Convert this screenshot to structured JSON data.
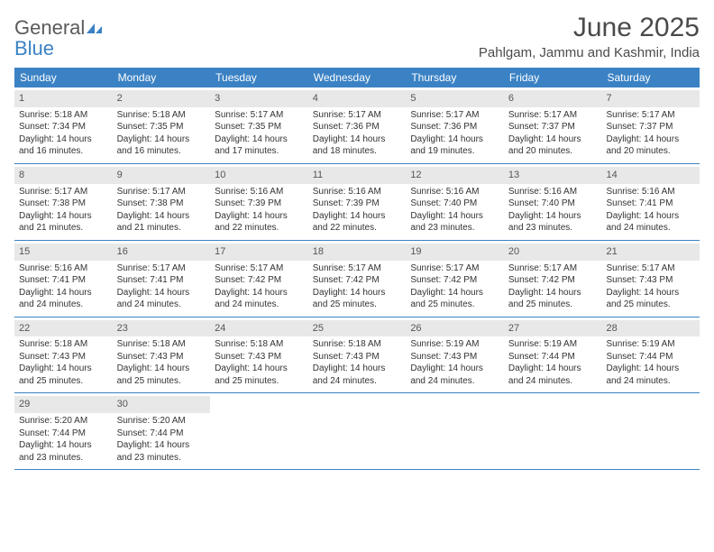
{
  "brand": {
    "name1": "General",
    "name2": "Blue"
  },
  "title": "June 2025",
  "location": "Pahlgam, Jammu and Kashmir, India",
  "colors": {
    "header_bg": "#3b82c4",
    "row_border": "#3b82c4",
    "daynum_bg": "#e8e8e8",
    "text": "#333333",
    "title_text": "#4a4a4a",
    "logo_gray": "#5a5a5a",
    "logo_blue": "#3b82c4"
  },
  "weekdays": [
    "Sunday",
    "Monday",
    "Tuesday",
    "Wednesday",
    "Thursday",
    "Friday",
    "Saturday"
  ],
  "days": [
    {
      "n": 1,
      "sr": "5:18 AM",
      "ss": "7:34 PM",
      "dl": "14 hours and 16 minutes."
    },
    {
      "n": 2,
      "sr": "5:18 AM",
      "ss": "7:35 PM",
      "dl": "14 hours and 16 minutes."
    },
    {
      "n": 3,
      "sr": "5:17 AM",
      "ss": "7:35 PM",
      "dl": "14 hours and 17 minutes."
    },
    {
      "n": 4,
      "sr": "5:17 AM",
      "ss": "7:36 PM",
      "dl": "14 hours and 18 minutes."
    },
    {
      "n": 5,
      "sr": "5:17 AM",
      "ss": "7:36 PM",
      "dl": "14 hours and 19 minutes."
    },
    {
      "n": 6,
      "sr": "5:17 AM",
      "ss": "7:37 PM",
      "dl": "14 hours and 20 minutes."
    },
    {
      "n": 7,
      "sr": "5:17 AM",
      "ss": "7:37 PM",
      "dl": "14 hours and 20 minutes."
    },
    {
      "n": 8,
      "sr": "5:17 AM",
      "ss": "7:38 PM",
      "dl": "14 hours and 21 minutes."
    },
    {
      "n": 9,
      "sr": "5:17 AM",
      "ss": "7:38 PM",
      "dl": "14 hours and 21 minutes."
    },
    {
      "n": 10,
      "sr": "5:16 AM",
      "ss": "7:39 PM",
      "dl": "14 hours and 22 minutes."
    },
    {
      "n": 11,
      "sr": "5:16 AM",
      "ss": "7:39 PM",
      "dl": "14 hours and 22 minutes."
    },
    {
      "n": 12,
      "sr": "5:16 AM",
      "ss": "7:40 PM",
      "dl": "14 hours and 23 minutes."
    },
    {
      "n": 13,
      "sr": "5:16 AM",
      "ss": "7:40 PM",
      "dl": "14 hours and 23 minutes."
    },
    {
      "n": 14,
      "sr": "5:16 AM",
      "ss": "7:41 PM",
      "dl": "14 hours and 24 minutes."
    },
    {
      "n": 15,
      "sr": "5:16 AM",
      "ss": "7:41 PM",
      "dl": "14 hours and 24 minutes."
    },
    {
      "n": 16,
      "sr": "5:17 AM",
      "ss": "7:41 PM",
      "dl": "14 hours and 24 minutes."
    },
    {
      "n": 17,
      "sr": "5:17 AM",
      "ss": "7:42 PM",
      "dl": "14 hours and 24 minutes."
    },
    {
      "n": 18,
      "sr": "5:17 AM",
      "ss": "7:42 PM",
      "dl": "14 hours and 25 minutes."
    },
    {
      "n": 19,
      "sr": "5:17 AM",
      "ss": "7:42 PM",
      "dl": "14 hours and 25 minutes."
    },
    {
      "n": 20,
      "sr": "5:17 AM",
      "ss": "7:42 PM",
      "dl": "14 hours and 25 minutes."
    },
    {
      "n": 21,
      "sr": "5:17 AM",
      "ss": "7:43 PM",
      "dl": "14 hours and 25 minutes."
    },
    {
      "n": 22,
      "sr": "5:18 AM",
      "ss": "7:43 PM",
      "dl": "14 hours and 25 minutes."
    },
    {
      "n": 23,
      "sr": "5:18 AM",
      "ss": "7:43 PM",
      "dl": "14 hours and 25 minutes."
    },
    {
      "n": 24,
      "sr": "5:18 AM",
      "ss": "7:43 PM",
      "dl": "14 hours and 25 minutes."
    },
    {
      "n": 25,
      "sr": "5:18 AM",
      "ss": "7:43 PM",
      "dl": "14 hours and 24 minutes."
    },
    {
      "n": 26,
      "sr": "5:19 AM",
      "ss": "7:43 PM",
      "dl": "14 hours and 24 minutes."
    },
    {
      "n": 27,
      "sr": "5:19 AM",
      "ss": "7:44 PM",
      "dl": "14 hours and 24 minutes."
    },
    {
      "n": 28,
      "sr": "5:19 AM",
      "ss": "7:44 PM",
      "dl": "14 hours and 24 minutes."
    },
    {
      "n": 29,
      "sr": "5:20 AM",
      "ss": "7:44 PM",
      "dl": "14 hours and 23 minutes."
    },
    {
      "n": 30,
      "sr": "5:20 AM",
      "ss": "7:44 PM",
      "dl": "14 hours and 23 minutes."
    }
  ],
  "labels": {
    "sunrise": "Sunrise:",
    "sunset": "Sunset:",
    "daylight": "Daylight:"
  },
  "grid": {
    "first_weekday_index": 0,
    "total_cells": 35
  }
}
